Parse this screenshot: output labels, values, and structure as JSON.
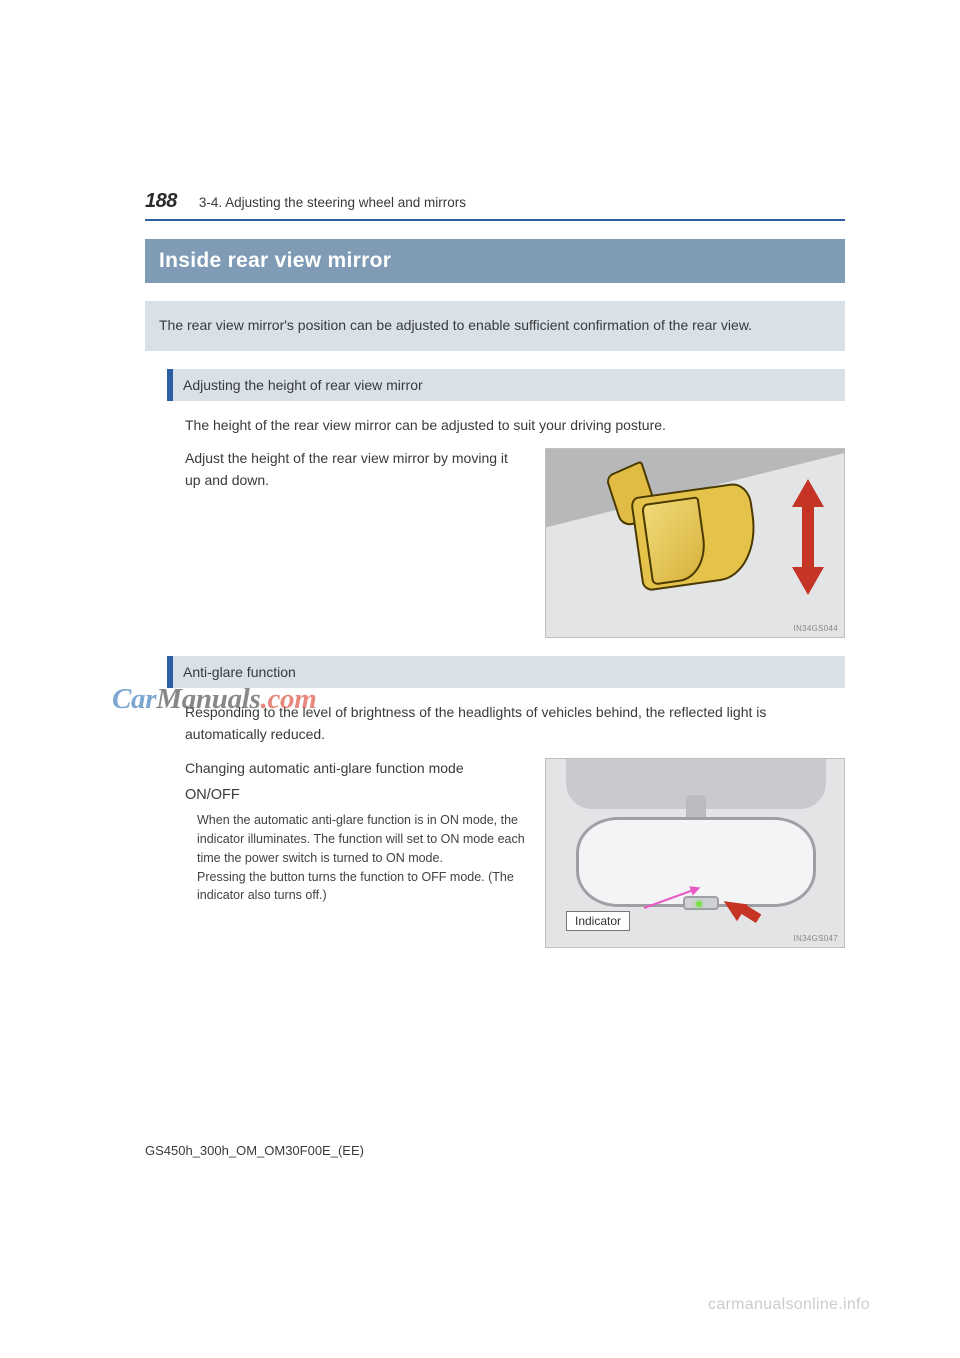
{
  "colors": {
    "header_rule": "#2a5fa3",
    "title_bar_bg": "#7f9bb5",
    "title_bar_text": "#ffffff",
    "intro_box_bg": "#d8e0e8",
    "section_bar_bg": "#d8e0e8",
    "section_bar_accent": "#2a5fa3",
    "arrow_red": "#c63426",
    "mirror_yellow": "#e5c24a",
    "bg_gray": "#e3e4e6",
    "watermark_blue": "#2a6fb3",
    "watermark_red": "#d83a2b",
    "watermark_gray": "#cccccc",
    "text": "#3a3a3a"
  },
  "page_number": "188",
  "chapter": "3-4. Adjusting the steering wheel and mirrors",
  "title": "Inside rear view mirror",
  "intro": "The rear view mirror's position can be adjusted to enable sufficient confirmation of the rear view.",
  "section1": {
    "heading": "Adjusting the height of rear view mirror",
    "line1": "The height of the rear view mirror can be adjusted to suit your driving posture.",
    "line2": "Adjust the height of the rear view mirror by moving it up and down.",
    "figure_code": "IN34GS044"
  },
  "section2": {
    "heading": "Anti-glare function",
    "line1": "Responding to the level of brightness of the headlights of vehicles behind, the reflected light is automatically reduced.",
    "para": "Changing automatic anti-glare function mode",
    "onoff": "ON/OFF",
    "note": "When the automatic anti-glare function is in ON mode, the indicator illuminates. The function will set to ON mode each time the power switch is turned to ON mode.\nPressing the button turns the function to OFF mode. (The indicator also turns off.)",
    "figure_label": "Indicator",
    "figure_code": "IN34GS047"
  },
  "doc_code": "GS450h_300h_OM_OM30F00E_(EE)",
  "watermark_center": {
    "pre": "Car",
    "mid": "Manuals",
    "post": ".com"
  },
  "watermark_bottom": "carmanualsonline.info"
}
